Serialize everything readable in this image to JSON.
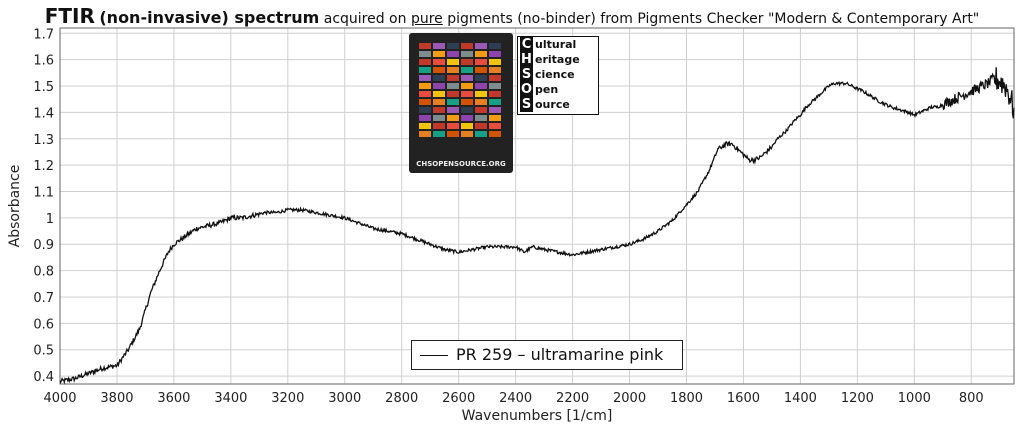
{
  "title": {
    "part1": "FTIR",
    "part2": "(non-invasive) spectrum",
    "part3": "acquired on",
    "part4": "pure",
    "part5": "pigments (no-binder) from Pigments Checker \"Modern & Contemporary Art\""
  },
  "logo": {
    "letters": [
      "C",
      "H",
      "S",
      "O",
      "S"
    ],
    "words": [
      "ultural",
      "eritage",
      "cience",
      "pen",
      "ource"
    ],
    "url": "CHSOPENSOURCE.ORG"
  },
  "colors": {
    "line": "#111111",
    "grid": "#cfcfcf",
    "axis": "#555555"
  },
  "chart_data": {
    "type": "line",
    "xlabel": "Wavenumbers [1/cm]",
    "ylabel": "Absorbance",
    "xlim": [
      4000,
      650
    ],
    "ylim": [
      0.37,
      1.72
    ],
    "x_reversed": true,
    "grid": true,
    "legend_position": "bottom-center",
    "xticks": [
      4000,
      3800,
      3600,
      3400,
      3200,
      3000,
      2800,
      2600,
      2400,
      2200,
      2000,
      1800,
      1600,
      1400,
      1200,
      1000,
      800
    ],
    "yticks": [
      0.4,
      0.5,
      0.6,
      0.7,
      0.8,
      0.9,
      1,
      1.1,
      1.2,
      1.3,
      1.4,
      1.5,
      1.6,
      1.7
    ],
    "series": [
      {
        "name": "PR 259 – ultramarine pink",
        "x": [
          4000,
          3950,
          3900,
          3850,
          3800,
          3760,
          3720,
          3680,
          3650,
          3620,
          3600,
          3560,
          3520,
          3480,
          3440,
          3400,
          3360,
          3320,
          3280,
          3240,
          3200,
          3150,
          3100,
          3050,
          3000,
          2950,
          2900,
          2850,
          2800,
          2750,
          2700,
          2650,
          2600,
          2550,
          2500,
          2450,
          2400,
          2370,
          2340,
          2300,
          2250,
          2200,
          2150,
          2100,
          2050,
          2000,
          1950,
          1900,
          1850,
          1800,
          1760,
          1720,
          1690,
          1660,
          1640,
          1620,
          1600,
          1580,
          1560,
          1540,
          1520,
          1500,
          1480,
          1450,
          1420,
          1400,
          1380,
          1350,
          1320,
          1300,
          1280,
          1260,
          1240,
          1220,
          1200,
          1180,
          1150,
          1120,
          1100,
          1080,
          1050,
          1020,
          1000,
          980,
          960,
          940,
          920,
          900,
          880,
          860,
          840,
          820,
          800,
          780,
          760,
          740,
          720,
          700,
          680,
          660,
          650
        ],
        "y": [
          0.38,
          0.39,
          0.41,
          0.43,
          0.44,
          0.5,
          0.58,
          0.72,
          0.8,
          0.87,
          0.9,
          0.93,
          0.96,
          0.97,
          0.98,
          1.0,
          1.0,
          1.01,
          1.02,
          1.02,
          1.03,
          1.03,
          1.02,
          1.01,
          1.0,
          0.98,
          0.96,
          0.95,
          0.94,
          0.92,
          0.9,
          0.88,
          0.87,
          0.88,
          0.89,
          0.89,
          0.89,
          0.87,
          0.89,
          0.88,
          0.87,
          0.86,
          0.87,
          0.88,
          0.89,
          0.9,
          0.92,
          0.95,
          0.99,
          1.05,
          1.1,
          1.18,
          1.26,
          1.28,
          1.28,
          1.26,
          1.24,
          1.22,
          1.22,
          1.23,
          1.25,
          1.27,
          1.3,
          1.33,
          1.37,
          1.39,
          1.42,
          1.45,
          1.48,
          1.5,
          1.51,
          1.51,
          1.51,
          1.5,
          1.49,
          1.48,
          1.46,
          1.44,
          1.43,
          1.42,
          1.41,
          1.4,
          1.39,
          1.4,
          1.41,
          1.42,
          1.42,
          1.43,
          1.44,
          1.45,
          1.46,
          1.47,
          1.48,
          1.49,
          1.5,
          1.51,
          1.53,
          1.52,
          1.5,
          1.45,
          1.4
        ]
      }
    ]
  }
}
